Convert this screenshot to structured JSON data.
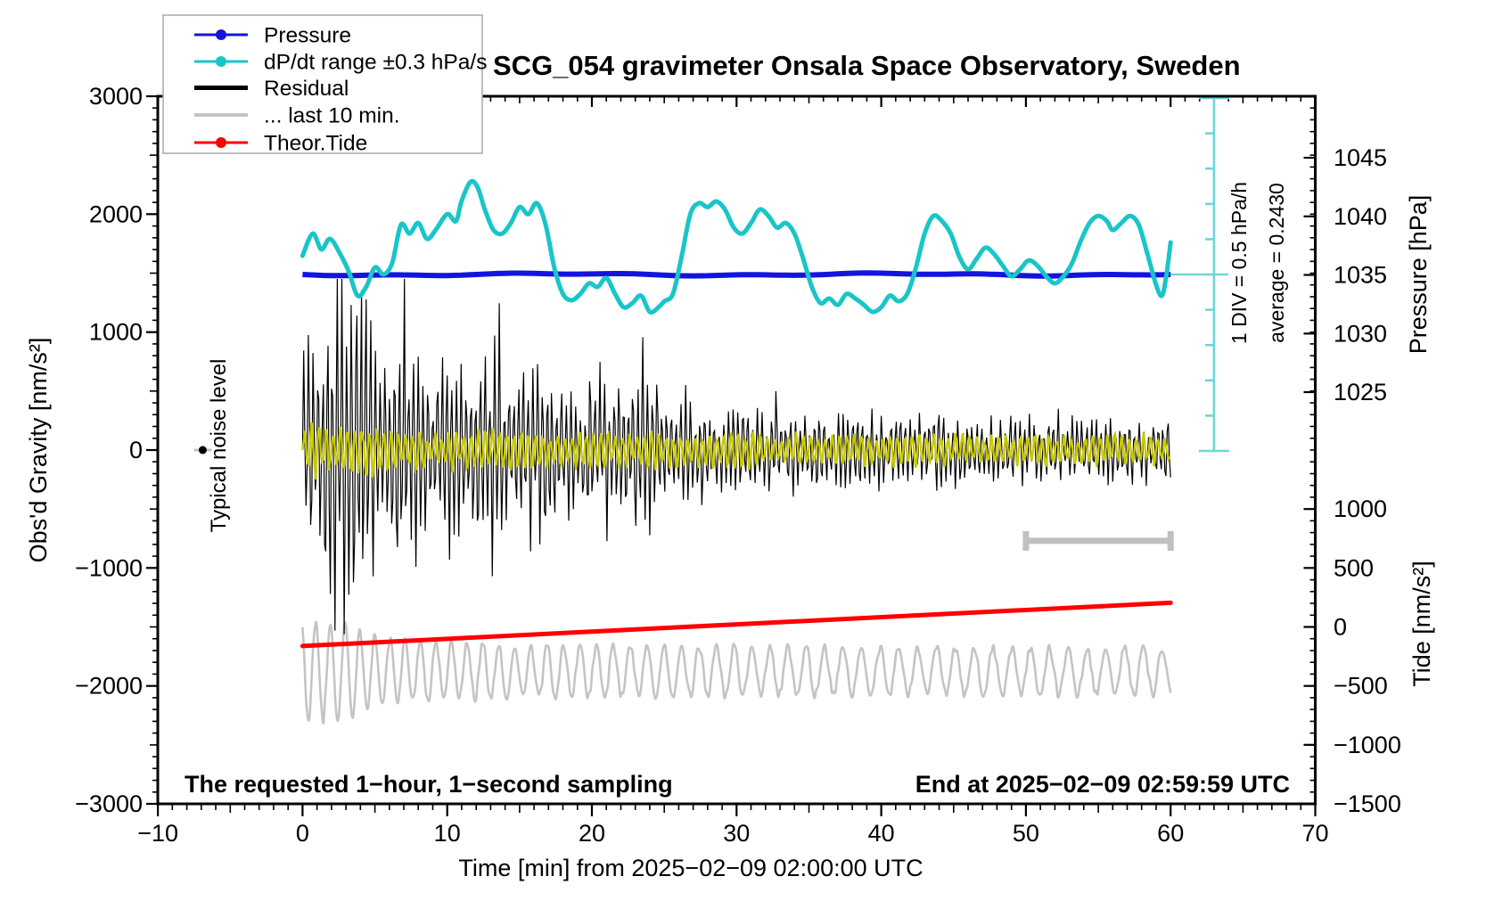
{
  "title": "SCG_054 gravimeter Onsala Space Observatory, Sweden",
  "annotations": {
    "sampling_note": "The requested 1−hour, 1−second sampling",
    "end_note": "End at 2025−02−09 02:59:59 UTC",
    "noise_label": "Typical noise level",
    "div_label": "1 DIV = 0.5 hPa/h",
    "average_label": "average = 0.2430"
  },
  "axes": {
    "x": {
      "title": "Time [min] from 2025−02−09 02:00:00 UTC",
      "range": [
        -10,
        70
      ],
      "major_ticks": [
        -10,
        0,
        10,
        20,
        30,
        40,
        50,
        60,
        70
      ],
      "minor_step": 1
    },
    "gravity": {
      "title": "Obs'd Gravity [nm/s²]",
      "range": [
        -3000,
        3000
      ],
      "major_ticks": [
        3000,
        2000,
        1000,
        0,
        -1000,
        -2000,
        -3000
      ],
      "minor_step": 100
    },
    "pressure": {
      "title": "Pressure [hPa]",
      "major_ticks": [
        1045,
        1040,
        1035,
        1030,
        1025
      ],
      "minor_step": 1
    },
    "tide": {
      "title": "Tide [nm/s²]",
      "major_ticks": [
        1000,
        500,
        0,
        -500,
        -1000,
        -1500
      ],
      "minor_step": 100
    }
  },
  "legend": {
    "items": [
      {
        "label": "Pressure",
        "color": "#1414e0",
        "marker": "line-dot"
      },
      {
        "label": "dP/dt range ±0.3 hPa/s",
        "color": "#19c5c8",
        "marker": "line-dot"
      },
      {
        "label": "Residual",
        "color": "#000000",
        "marker": "thick-line"
      },
      {
        "label": "... last 10 min.",
        "color": "#c4c4c4",
        "marker": "line"
      },
      {
        "label": "Theor.Tide",
        "color": "#ff0000",
        "marker": "line-dot"
      }
    ]
  },
  "colors": {
    "pressure": "#1414e0",
    "dpdt": "#19c5c8",
    "ruler": "#6fd6d6",
    "residual": "#000000",
    "highlight": "#c9c900",
    "last10": "#c4c4c4",
    "bar": "#c0c0c0",
    "tide": "#ff0000",
    "frame": "#000000",
    "legend_border": "#a8a8a8"
  },
  "chart_data": {
    "type": "line",
    "title": "SCG_054 gravimeter Onsala Space Observatory, Sweden",
    "xlabel": "Time [min] from 2025−02−09 02:00:00 UTC",
    "x_range": [
      -10,
      70
    ],
    "gravity_range": [
      -3000,
      3000
    ],
    "pressure_ticks_hPa": [
      1025,
      1030,
      1035,
      1040,
      1045
    ],
    "tide_ticks": [
      -1500,
      -1000,
      -500,
      0,
      500,
      1000
    ],
    "grid": false,
    "legend_position": "top-left",
    "dpdt_scale": {
      "div_value": "0.5 hPa/h",
      "divisions": 10,
      "average_hPa_per_h": 0.243,
      "t_position_min": 63
    },
    "last10_bar": {
      "t_start": 50,
      "t_end": 60,
      "gravity_level": -770
    },
    "noise_marker": {
      "t": -6.9,
      "gravity": 0
    },
    "series": [
      {
        "name": "Pressure",
        "unit": "hPa",
        "points": [
          [
            0,
            1035.05
          ],
          [
            60,
            1035.05
          ]
        ]
      },
      {
        "name": "dP/dt range ±0.3 hPa/s",
        "unit": "DIV relative to average (1 DIV = 0.5 hPa/h)",
        "points": [
          [
            0,
            0.53
          ],
          [
            0.7,
            1.16
          ],
          [
            1.3,
            0.71
          ],
          [
            1.9,
            1.01
          ],
          [
            2.6,
            0.58
          ],
          [
            3.2,
            0.08
          ],
          [
            3.8,
            -0.6
          ],
          [
            4.4,
            -0.35
          ],
          [
            5,
            0.2
          ],
          [
            5.6,
            0
          ],
          [
            6.2,
            0.33
          ],
          [
            6.8,
            1.41
          ],
          [
            7.4,
            1.16
          ],
          [
            8,
            1.46
          ],
          [
            8.6,
            1.01
          ],
          [
            9.2,
            1.26
          ],
          [
            10,
            1.71
          ],
          [
            10.6,
            1.51
          ],
          [
            11,
            2.09
          ],
          [
            11.6,
            2.62
          ],
          [
            12.1,
            2.47
          ],
          [
            12.6,
            1.84
          ],
          [
            13.2,
            1.26
          ],
          [
            13.8,
            1.16
          ],
          [
            14.4,
            1.46
          ],
          [
            15,
            1.91
          ],
          [
            15.6,
            1.71
          ],
          [
            16.2,
            2.02
          ],
          [
            16.8,
            1.41
          ],
          [
            17.4,
            0.2
          ],
          [
            18,
            -0.55
          ],
          [
            18.6,
            -0.73
          ],
          [
            19.2,
            -0.55
          ],
          [
            19.8,
            -0.25
          ],
          [
            20.4,
            -0.35
          ],
          [
            21,
            -0.1
          ],
          [
            21.6,
            -0.55
          ],
          [
            22.2,
            -0.93
          ],
          [
            22.8,
            -0.81
          ],
          [
            23.4,
            -0.6
          ],
          [
            24,
            -1.06
          ],
          [
            24.6,
            -0.93
          ],
          [
            25,
            -0.76
          ],
          [
            25.6,
            -0.55
          ],
          [
            26.2,
            0.5
          ],
          [
            26.8,
            1.71
          ],
          [
            27.4,
            2.02
          ],
          [
            28,
            1.91
          ],
          [
            28.6,
            2.07
          ],
          [
            29.2,
            1.84
          ],
          [
            29.8,
            1.33
          ],
          [
            30.4,
            1.16
          ],
          [
            31,
            1.46
          ],
          [
            31.6,
            1.84
          ],
          [
            32.2,
            1.66
          ],
          [
            32.8,
            1.33
          ],
          [
            33.4,
            1.46
          ],
          [
            34,
            1.16
          ],
          [
            34.6,
            0.45
          ],
          [
            35.2,
            -0.35
          ],
          [
            35.8,
            -0.81
          ],
          [
            36.4,
            -0.68
          ],
          [
            37,
            -0.86
          ],
          [
            37.6,
            -0.55
          ],
          [
            38.2,
            -0.68
          ],
          [
            38.8,
            -0.86
          ],
          [
            39.4,
            -1.06
          ],
          [
            40,
            -0.93
          ],
          [
            40.6,
            -0.6
          ],
          [
            41.2,
            -0.76
          ],
          [
            41.8,
            -0.55
          ],
          [
            42.4,
            0.2
          ],
          [
            43,
            1.16
          ],
          [
            43.6,
            1.66
          ],
          [
            44.2,
            1.51
          ],
          [
            44.8,
            1.16
          ],
          [
            45.4,
            0.5
          ],
          [
            46,
            0.15
          ],
          [
            46.6,
            0.45
          ],
          [
            47.2,
            0.76
          ],
          [
            47.8,
            0.58
          ],
          [
            48.4,
            0.25
          ],
          [
            49,
            -0.05
          ],
          [
            49.6,
            0.15
          ],
          [
            50.2,
            0.4
          ],
          [
            50.8,
            0.25
          ],
          [
            51.4,
            -0.05
          ],
          [
            52,
            -0.25
          ],
          [
            52.6,
            -0.05
          ],
          [
            53.2,
            0.33
          ],
          [
            53.8,
            0.96
          ],
          [
            54.4,
            1.46
          ],
          [
            55,
            1.66
          ],
          [
            55.6,
            1.51
          ],
          [
            56,
            1.26
          ],
          [
            56.6,
            1.46
          ],
          [
            57.2,
            1.66
          ],
          [
            57.8,
            1.41
          ],
          [
            58.4,
            0.58
          ],
          [
            59,
            -0.3
          ],
          [
            59.4,
            -0.6
          ],
          [
            59.7,
            -0.05
          ],
          [
            60,
            0.91
          ]
        ]
      },
      {
        "name": "Residual",
        "unit": "nm/s²",
        "center": 0,
        "oscillation_period_min": 0.33,
        "envelope": [
          [
            0,
            570
          ],
          [
            0.5,
            980
          ],
          [
            1,
            760
          ],
          [
            1.5,
            680
          ],
          [
            2,
            1060
          ],
          [
            2.5,
            1320
          ],
          [
            3,
            1130
          ],
          [
            3.5,
            1360
          ],
          [
            4,
            1510
          ],
          [
            4.5,
            1130
          ],
          [
            5,
            910
          ],
          [
            5.5,
            1060
          ],
          [
            6,
            830
          ],
          [
            7,
            910
          ],
          [
            7.5,
            1020
          ],
          [
            8,
            680
          ],
          [
            9,
            530
          ],
          [
            9.5,
            640
          ],
          [
            10,
            760
          ],
          [
            10.5,
            830
          ],
          [
            11.5,
            530
          ],
          [
            12.5,
            910
          ],
          [
            13,
            830
          ],
          [
            14,
            530
          ],
          [
            14.5,
            450
          ],
          [
            15.5,
            680
          ],
          [
            16,
            760
          ],
          [
            17,
            530
          ],
          [
            18,
            420
          ],
          [
            18.5,
            490
          ],
          [
            19.5,
            380
          ],
          [
            20.5,
            490
          ],
          [
            21.5,
            640
          ],
          [
            22.5,
            420
          ],
          [
            23.5,
            720
          ],
          [
            24.5,
            530
          ],
          [
            25.5,
            380
          ],
          [
            26.5,
            320
          ],
          [
            28,
            290
          ],
          [
            30,
            300
          ],
          [
            32,
            290
          ],
          [
            34,
            300
          ],
          [
            36,
            260
          ],
          [
            38,
            240
          ],
          [
            40,
            260
          ],
          [
            42,
            230
          ],
          [
            44,
            260
          ],
          [
            46,
            230
          ],
          [
            48,
            210
          ],
          [
            50,
            230
          ],
          [
            52,
            215
          ],
          [
            54,
            230
          ],
          [
            56,
            215
          ],
          [
            58,
            230
          ],
          [
            60,
            220
          ]
        ]
      },
      {
        "name": "Residual recent highlight",
        "unit": "nm/s²",
        "center": 0,
        "oscillation_period_min": 0.5,
        "envelope": [
          [
            0,
            210
          ],
          [
            2,
            240
          ],
          [
            4,
            225
          ],
          [
            6,
            190
          ],
          [
            10,
            165
          ],
          [
            20,
            150
          ],
          [
            30,
            135
          ],
          [
            60,
            120
          ]
        ]
      },
      {
        "name": "... last 10 min.",
        "unit": "nm/s²",
        "center": -1875,
        "oscillation_period_min": [
          1.0,
          1.3
        ],
        "envelope": [
          [
            0,
            420
          ],
          [
            3,
            400
          ],
          [
            5,
            290
          ],
          [
            8,
            250
          ],
          [
            15,
            215
          ],
          [
            30,
            205
          ],
          [
            60,
            195
          ]
        ]
      },
      {
        "name": "Theor.Tide",
        "unit": "nm/s² (tide axis)",
        "points": [
          [
            0,
            -162
          ],
          [
            30,
            22
          ],
          [
            60,
            205
          ]
        ]
      }
    ]
  }
}
